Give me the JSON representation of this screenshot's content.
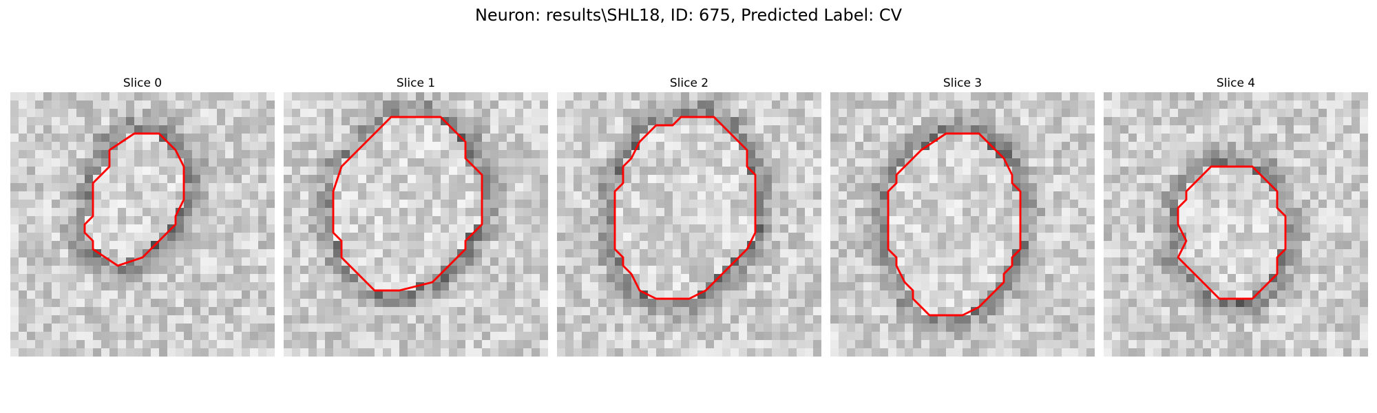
{
  "figure": {
    "title": "Neuron: results\\SHL18, ID: 675, Predicted Label: CV"
  },
  "colors": {
    "contour": "#ff0000",
    "background": "#ffffff"
  },
  "slices": [
    {
      "title": "Slice 0",
      "contour": [
        [
          15,
          5
        ],
        [
          18,
          5
        ],
        [
          20,
          7
        ],
        [
          21,
          9
        ],
        [
          21,
          13
        ],
        [
          20,
          15
        ],
        [
          20,
          16
        ],
        [
          18,
          18
        ],
        [
          17,
          19
        ],
        [
          16,
          20
        ],
        [
          13,
          21
        ],
        [
          10,
          19
        ],
        [
          10,
          18
        ],
        [
          9,
          17
        ],
        [
          9,
          16
        ],
        [
          10,
          15
        ],
        [
          10,
          11
        ],
        [
          11,
          10
        ],
        [
          12,
          9
        ],
        [
          12,
          7
        ]
      ]
    },
    {
      "title": "Slice 1",
      "contour": [
        [
          13,
          3
        ],
        [
          19,
          3
        ],
        [
          21,
          5
        ],
        [
          22,
          6
        ],
        [
          22,
          8
        ],
        [
          24,
          10
        ],
        [
          24,
          16
        ],
        [
          22,
          18
        ],
        [
          22,
          19
        ],
        [
          20,
          21
        ],
        [
          18,
          23
        ],
        [
          14,
          24
        ],
        [
          11,
          24
        ],
        [
          10,
          23
        ],
        [
          8,
          21
        ],
        [
          7,
          20
        ],
        [
          7,
          18
        ],
        [
          6,
          17
        ],
        [
          6,
          12
        ],
        [
          7,
          9
        ],
        [
          9,
          7
        ],
        [
          11,
          5
        ]
      ]
    },
    {
      "title": "Slice 2",
      "contour": [
        [
          12,
          4
        ],
        [
          14,
          4
        ],
        [
          15,
          3
        ],
        [
          19,
          3
        ],
        [
          21,
          5
        ],
        [
          22,
          6
        ],
        [
          23,
          7
        ],
        [
          23,
          9
        ],
        [
          24,
          10
        ],
        [
          24,
          17
        ],
        [
          23,
          19
        ],
        [
          22,
          20
        ],
        [
          20,
          22
        ],
        [
          18,
          24
        ],
        [
          16,
          25
        ],
        [
          12,
          25
        ],
        [
          10,
          24
        ],
        [
          9,
          22
        ],
        [
          8,
          21
        ],
        [
          8,
          20
        ],
        [
          7,
          19
        ],
        [
          7,
          12
        ],
        [
          8,
          11
        ],
        [
          8,
          10
        ],
        [
          8,
          9
        ],
        [
          9,
          8
        ],
        [
          10,
          6
        ]
      ]
    },
    {
      "title": "Slice 3",
      "contour": [
        [
          11,
          7
        ],
        [
          14,
          5
        ],
        [
          18,
          5
        ],
        [
          19,
          6
        ],
        [
          20,
          7
        ],
        [
          21,
          8
        ],
        [
          22,
          10
        ],
        [
          22,
          11
        ],
        [
          23,
          12
        ],
        [
          23,
          19
        ],
        [
          22,
          20
        ],
        [
          22,
          21
        ],
        [
          21,
          22
        ],
        [
          21,
          23
        ],
        [
          19,
          25
        ],
        [
          18,
          26
        ],
        [
          16,
          27
        ],
        [
          12,
          27
        ],
        [
          11,
          26
        ],
        [
          10,
          25
        ],
        [
          10,
          24
        ],
        [
          9,
          23
        ],
        [
          8,
          21
        ],
        [
          8,
          20
        ],
        [
          7,
          19
        ],
        [
          7,
          12
        ],
        [
          8,
          11
        ],
        [
          8,
          10
        ],
        [
          10,
          8
        ]
      ]
    },
    {
      "title": "Slice 4",
      "contour": [
        [
          13,
          9
        ],
        [
          18,
          9
        ],
        [
          20,
          11
        ],
        [
          21,
          12
        ],
        [
          21,
          14
        ],
        [
          22,
          15
        ],
        [
          22,
          19
        ],
        [
          21,
          20
        ],
        [
          21,
          22
        ],
        [
          20,
          23
        ],
        [
          18,
          25
        ],
        [
          14,
          25
        ],
        [
          12,
          23
        ],
        [
          10,
          21
        ],
        [
          9,
          20
        ],
        [
          10,
          18
        ],
        [
          9,
          16
        ],
        [
          9,
          14
        ],
        [
          10,
          13
        ],
        [
          10,
          12
        ],
        [
          12,
          10
        ]
      ]
    }
  ]
}
